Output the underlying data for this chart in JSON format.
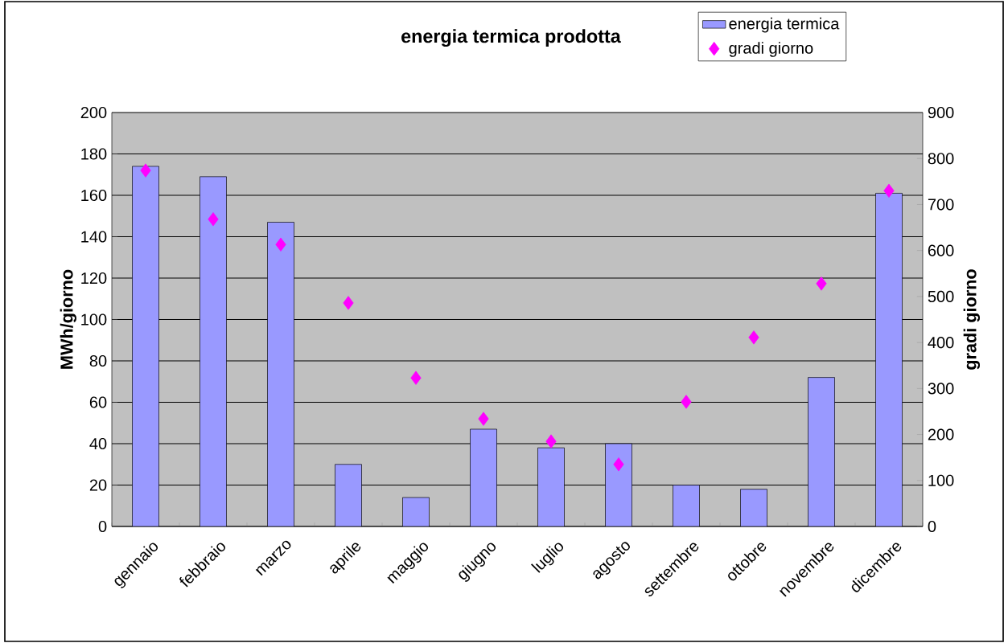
{
  "chart_data": {
    "type": "bar",
    "title": "energia termica prodotta",
    "ylabel": "MWh/giorno",
    "y2label": "gradi giorno",
    "categories": [
      "gennaio",
      "febbraio",
      "marzo",
      "aprile",
      "maggio",
      "giugno",
      "luglio",
      "agosto",
      "settembre",
      "ottobre",
      "novembre",
      "dicembre"
    ],
    "series": [
      {
        "name": "energia termica",
        "color": "#9999ff",
        "values": [
          174,
          169,
          147,
          30,
          14,
          47,
          38,
          40,
          20,
          18,
          72,
          161
        ]
      },
      {
        "name": "gradi giorno",
        "type": "scatter",
        "axis": "y2",
        "color": "#ff00ff",
        "values": [
          774,
          668,
          613,
          486,
          323,
          234,
          185,
          135,
          271,
          411,
          528,
          730
        ]
      }
    ],
    "ylim": [
      0,
      200
    ],
    "yticks": [
      0,
      20,
      40,
      60,
      80,
      100,
      120,
      140,
      160,
      180,
      200
    ],
    "y2lim": [
      0,
      900
    ],
    "y2ticks": [
      0,
      100,
      200,
      300,
      400,
      500,
      600,
      700,
      800,
      900
    ],
    "grid": "y",
    "legend": "top right",
    "marker": "diamond"
  }
}
